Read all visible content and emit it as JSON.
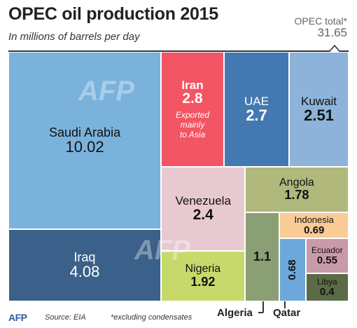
{
  "header": {
    "title": "OPEC oil production 2015",
    "subtitle": "In millions of barrels per day",
    "total_label": "OPEC total*",
    "total_value": "31.65"
  },
  "chart_data": {
    "type": "treemap",
    "title": "OPEC oil production 2015",
    "subtitle": "In millions of barrels per day",
    "total": 31.65,
    "items": [
      {
        "name": "Saudi Arabia",
        "value": 10.02,
        "color": "#7ab2dc"
      },
      {
        "name": "Iraq",
        "value": 4.08,
        "color": "#3b6089"
      },
      {
        "name": "Iran",
        "value": 2.8,
        "color": "#f25563",
        "note": "Exported\nmainly\nto Asia"
      },
      {
        "name": "UAE",
        "value": 2.7,
        "color": "#4379b0"
      },
      {
        "name": "Kuwait",
        "value": 2.51,
        "color": "#8db3da"
      },
      {
        "name": "Venezuela",
        "value": 2.4,
        "color": "#e7c9d0"
      },
      {
        "name": "Nigeria",
        "value": 1.92,
        "color": "#c6d96a"
      },
      {
        "name": "Angola",
        "value": 1.78,
        "color": "#b0b87c"
      },
      {
        "name": "Algeria",
        "value": 1.1,
        "color": "#8b9f74"
      },
      {
        "name": "Indonesia",
        "value": 0.69,
        "color": "#f9cb95"
      },
      {
        "name": "Qatar",
        "value": 0.68,
        "color": "#6ea8da"
      },
      {
        "name": "Ecuador",
        "value": 0.55,
        "color": "#c99aa8"
      },
      {
        "name": "Libya",
        "value": 0.4,
        "color": "#5b6b47"
      }
    ]
  },
  "footer": {
    "logo": "AFP",
    "source": "Source: EIA",
    "note": "*excluding condensates"
  },
  "watermark": "AFP"
}
